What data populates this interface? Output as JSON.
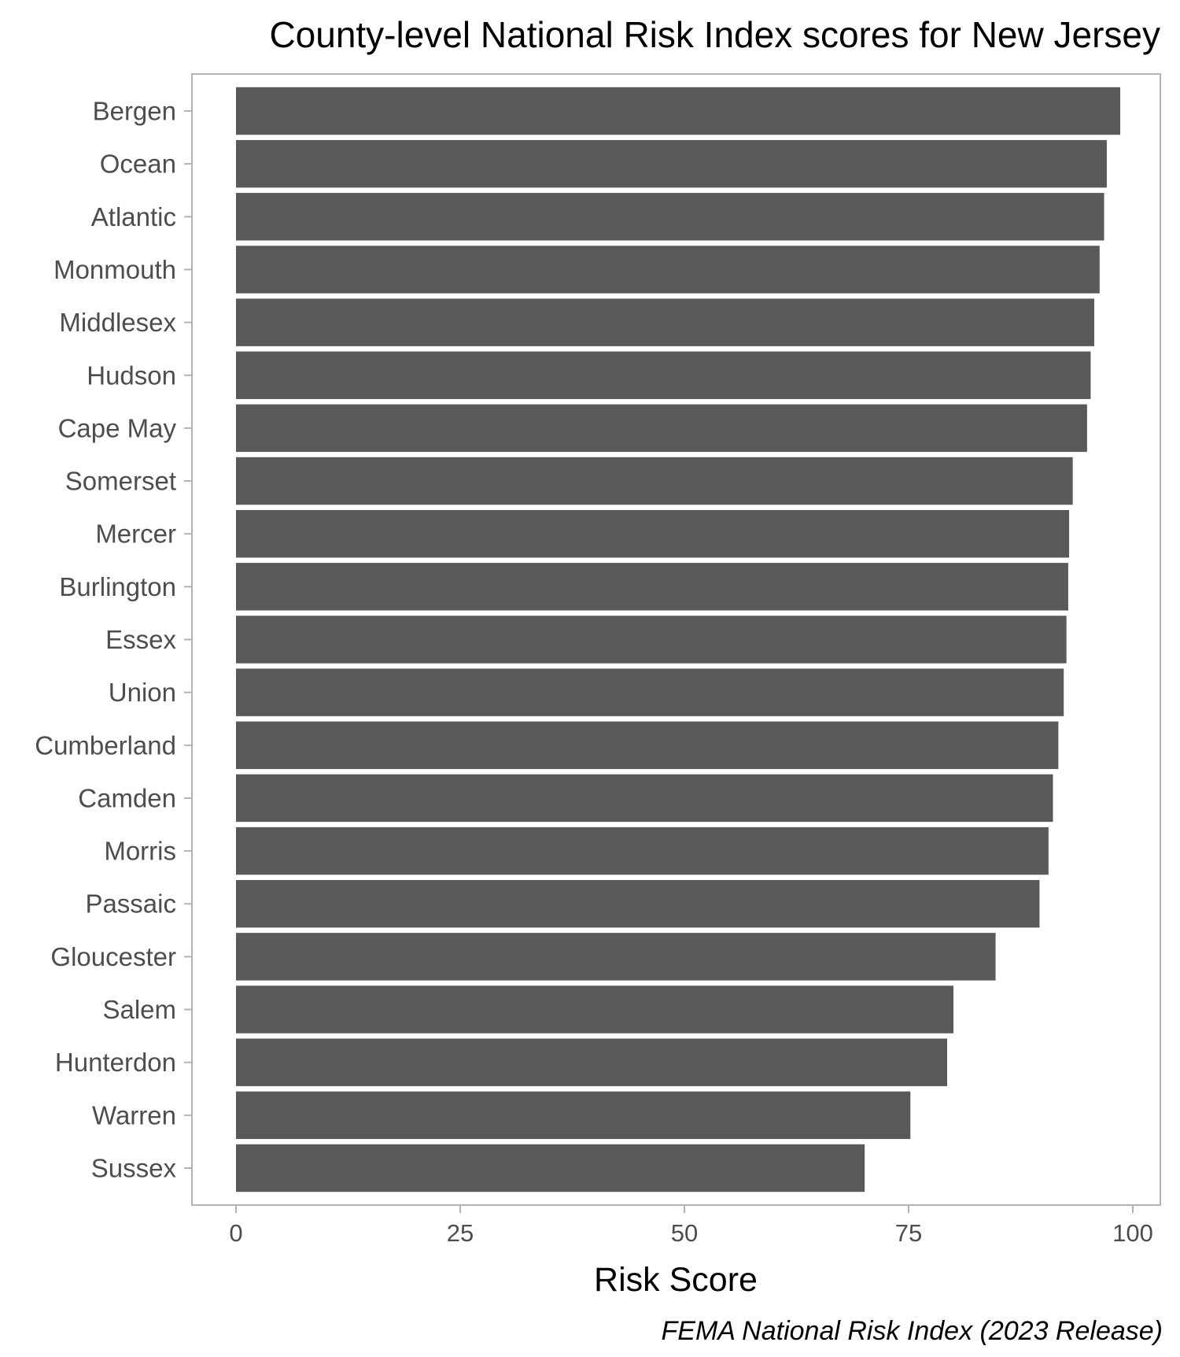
{
  "chart_data": {
    "type": "bar",
    "orientation": "horizontal",
    "title": "County-level National Risk Index scores for New Jersey",
    "xlabel": "Risk Score",
    "ylabel": "",
    "caption": "FEMA National Risk Index (2023 Release)",
    "xlim": [
      0,
      100
    ],
    "x_ticks": [
      0,
      25,
      50,
      75,
      100
    ],
    "grid": false,
    "bar_color": "#595959",
    "categories": [
      "Bergen",
      "Ocean",
      "Atlantic",
      "Monmouth",
      "Middlesex",
      "Hudson",
      "Cape May",
      "Somerset",
      "Mercer",
      "Burlington",
      "Essex",
      "Union",
      "Cumberland",
      "Camden",
      "Morris",
      "Passaic",
      "Gloucester",
      "Salem",
      "Hunterdon",
      "Warren",
      "Sussex"
    ],
    "values": [
      98.6,
      97.1,
      96.8,
      96.3,
      95.7,
      95.3,
      94.9,
      93.3,
      92.9,
      92.8,
      92.6,
      92.3,
      91.7,
      91.1,
      90.6,
      89.6,
      84.7,
      80.0,
      79.3,
      75.2,
      70.1
    ]
  }
}
